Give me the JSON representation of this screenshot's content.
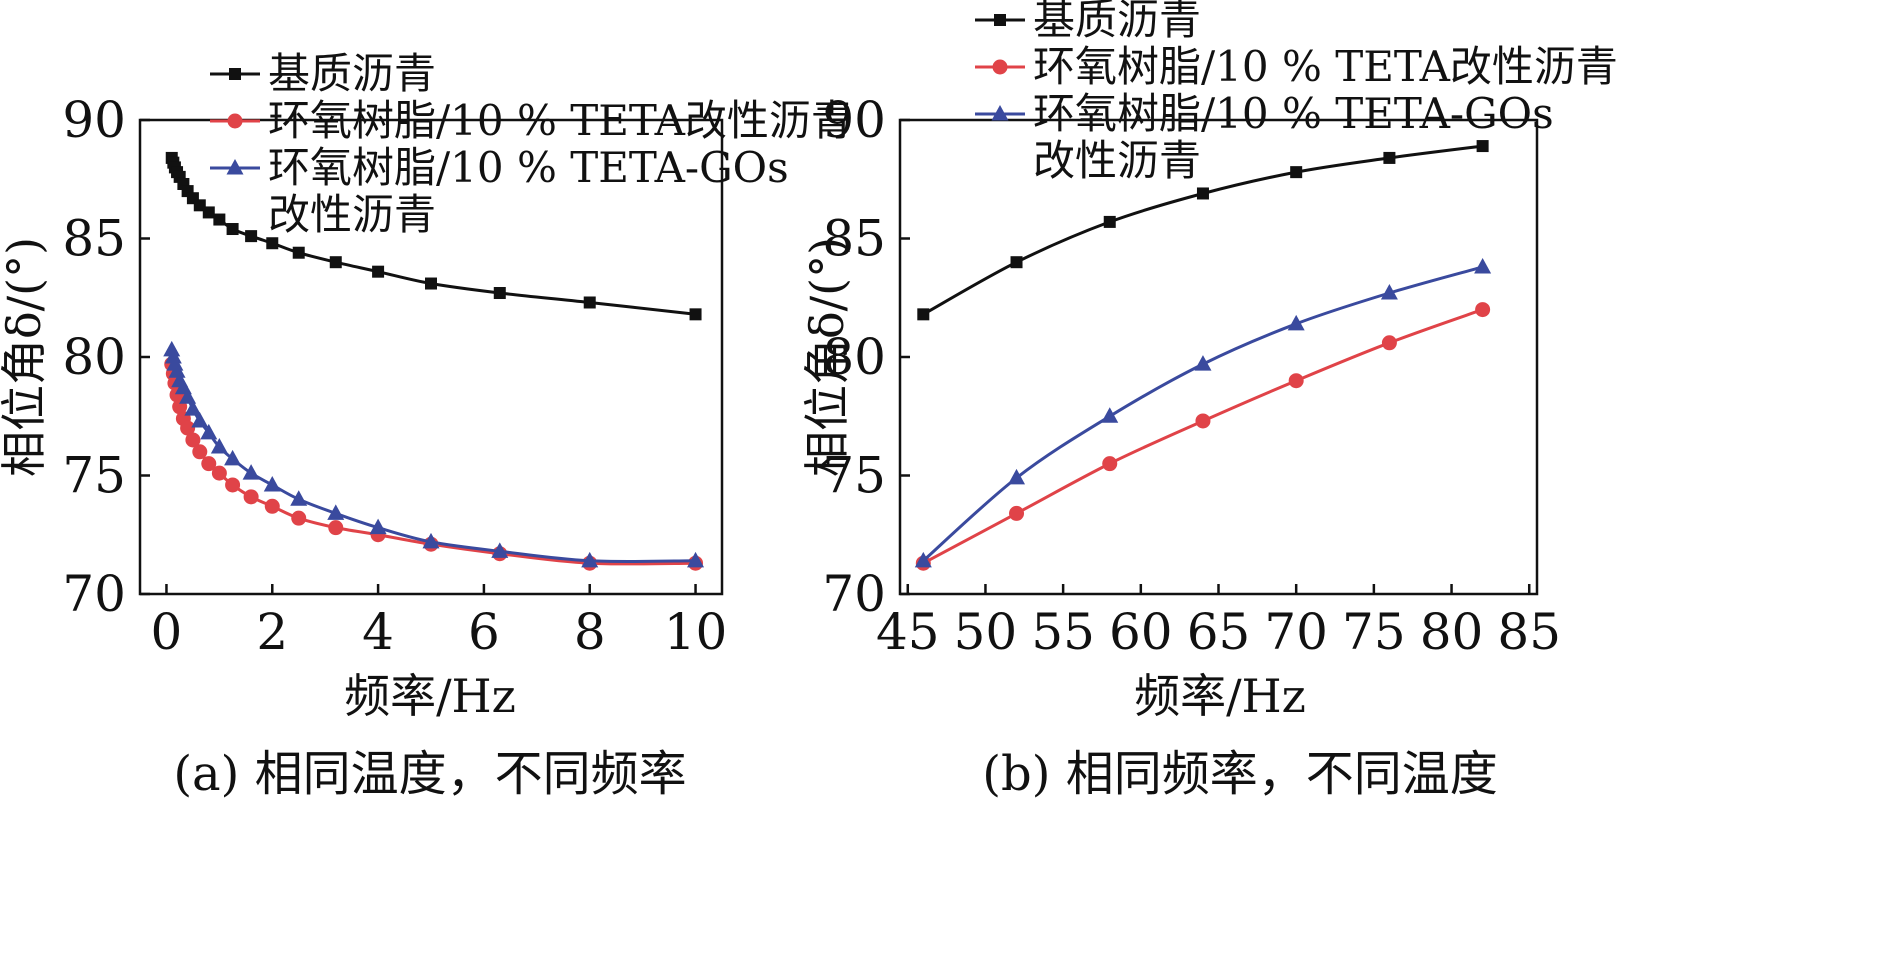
{
  "chart_data": [
    {
      "type": "line",
      "caption": "(a) 相同温度，不同频率",
      "xlabel": "频率/Hz",
      "ylabel": "相位角δ/(°)",
      "xlim": [
        -0.5,
        10.5
      ],
      "ylim": [
        70,
        90
      ],
      "xticks": [
        "0",
        "2",
        "4",
        "6",
        "8",
        "10"
      ],
      "yticks": [
        "70",
        "75",
        "80",
        "85",
        "90"
      ],
      "legend_position": "top",
      "grid": false,
      "series": [
        {
          "name": "基质沥青",
          "color": "#111111",
          "marker": "square",
          "x": [
            0.1,
            0.13,
            0.16,
            0.2,
            0.25,
            0.32,
            0.4,
            0.5,
            0.63,
            0.8,
            1.0,
            1.25,
            1.6,
            2.0,
            2.5,
            3.2,
            4.0,
            5.0,
            6.3,
            8.0,
            10.0
          ],
          "y": [
            88.4,
            88.2,
            88.0,
            87.8,
            87.6,
            87.3,
            87.0,
            86.7,
            86.4,
            86.1,
            85.8,
            85.4,
            85.1,
            84.8,
            84.4,
            84.0,
            83.6,
            83.1,
            82.7,
            82.3,
            81.8
          ]
        },
        {
          "name": "环氧树脂/10 % TETA改性沥青",
          "color": "#e04348",
          "marker": "circle",
          "x": [
            0.1,
            0.13,
            0.16,
            0.2,
            0.25,
            0.32,
            0.4,
            0.5,
            0.63,
            0.8,
            1.0,
            1.25,
            1.6,
            2.0,
            2.5,
            3.2,
            4.0,
            5.0,
            6.3,
            8.0,
            10.0
          ],
          "y": [
            79.7,
            79.3,
            78.9,
            78.4,
            77.9,
            77.4,
            77.0,
            76.5,
            76.0,
            75.5,
            75.1,
            74.6,
            74.1,
            73.7,
            73.2,
            72.8,
            72.5,
            72.1,
            71.7,
            71.3,
            71.3
          ]
        },
        {
          "name": "环氧树脂/10 % TETA-GOs改性沥青",
          "color": "#3a4a9e",
          "marker": "triangle",
          "x": [
            0.1,
            0.13,
            0.16,
            0.2,
            0.25,
            0.32,
            0.4,
            0.5,
            0.63,
            0.8,
            1.0,
            1.25,
            1.6,
            2.0,
            2.5,
            3.2,
            4.0,
            5.0,
            6.3,
            8.0,
            10.0
          ],
          "y": [
            80.3,
            80.0,
            79.7,
            79.4,
            79.0,
            78.7,
            78.3,
            77.8,
            77.3,
            76.8,
            76.2,
            75.7,
            75.1,
            74.6,
            74.0,
            73.4,
            72.8,
            72.2,
            71.8,
            71.4,
            71.4
          ]
        }
      ]
    },
    {
      "type": "line",
      "caption": "(b) 相同频率，不同温度",
      "xlabel": "频率/Hz",
      "ylabel": "相位角δ/(°)",
      "xlim": [
        44.5,
        85.5
      ],
      "ylim": [
        70,
        90
      ],
      "xticks": [
        "45",
        "50",
        "55",
        "60",
        "65",
        "70",
        "75",
        "80",
        "85"
      ],
      "yticks": [
        "70",
        "75",
        "80",
        "85",
        "90"
      ],
      "legend_position": "top",
      "grid": false,
      "series": [
        {
          "name": "基质沥青",
          "color": "#111111",
          "marker": "square",
          "x": [
            46,
            52,
            58,
            64,
            70,
            76,
            82
          ],
          "y": [
            81.8,
            84.0,
            85.7,
            86.9,
            87.8,
            88.4,
            88.9
          ]
        },
        {
          "name": "环氧树脂/10 % TETA改性沥青",
          "color": "#e04348",
          "marker": "circle",
          "x": [
            46,
            52,
            58,
            64,
            70,
            76,
            82
          ],
          "y": [
            71.3,
            73.4,
            75.5,
            77.3,
            79.0,
            80.6,
            82.0
          ]
        },
        {
          "name": "环氧树脂/10 % TETA-GOs改性沥青",
          "color": "#3a4a9e",
          "marker": "triangle",
          "x": [
            46,
            52,
            58,
            64,
            70,
            76,
            82
          ],
          "y": [
            71.4,
            74.9,
            77.5,
            79.7,
            81.4,
            82.7,
            83.8
          ]
        }
      ]
    }
  ],
  "legend": {
    "entries": [
      {
        "lines": [
          "基质沥青"
        ]
      },
      {
        "lines": [
          "环氧树脂/10 % TETA改性沥青"
        ]
      },
      {
        "lines": [
          "环氧树脂/10 % TETA-GOs",
          "改性沥青"
        ]
      }
    ]
  }
}
